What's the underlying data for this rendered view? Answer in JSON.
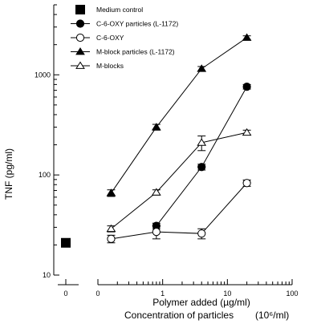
{
  "chart_data": {
    "type": "scatter",
    "ylabel": "TNF (pg/ml)",
    "xlabel_line1": "Polymer added (µg/ml)",
    "xlabel_line2": "Concentration of particles",
    "xlabel_unit": "(10⁶/ml)",
    "y_scale": "log",
    "x_scale": "log",
    "ylim": [
      10,
      5000
    ],
    "xlim": [
      0.1,
      100
    ],
    "y_ticks": [
      10,
      100,
      1000
    ],
    "x_ticks": [
      {
        "value": 0.1,
        "label": "0"
      },
      {
        "value": 1,
        "label": "1"
      },
      {
        "value": 10,
        "label": "10"
      },
      {
        "value": 100,
        "label": "100"
      }
    ],
    "control": {
      "name": "Medium control",
      "x_label": "0",
      "y": 21,
      "marker": "filled-square"
    },
    "series": [
      {
        "name": "C-6-OXY particles (L-1172)",
        "marker": "filled-circle",
        "x": [
          0.8,
          4,
          20
        ],
        "y": [
          31,
          120,
          760
        ],
        "err": [
          2,
          8,
          40
        ]
      },
      {
        "name": "C-6-OXY",
        "marker": "open-circle",
        "x": [
          0.16,
          0.8,
          4,
          20
        ],
        "y": [
          23,
          27,
          26,
          83
        ],
        "err": [
          2,
          4,
          3,
          6
        ]
      },
      {
        "name": "M-block particles (L-1172)",
        "marker": "filled-triangle",
        "x": [
          0.16,
          0.8,
          4,
          20
        ],
        "y": [
          66,
          300,
          1150,
          2350
        ],
        "err": [
          5,
          20,
          60,
          100
        ]
      },
      {
        "name": "M-blocks",
        "marker": "open-triangle",
        "x": [
          0.16,
          0.8,
          4,
          20
        ],
        "y": [
          29,
          67,
          210,
          265
        ],
        "err": [
          2,
          4,
          35,
          15
        ]
      }
    ],
    "legend_position": "top-left"
  }
}
